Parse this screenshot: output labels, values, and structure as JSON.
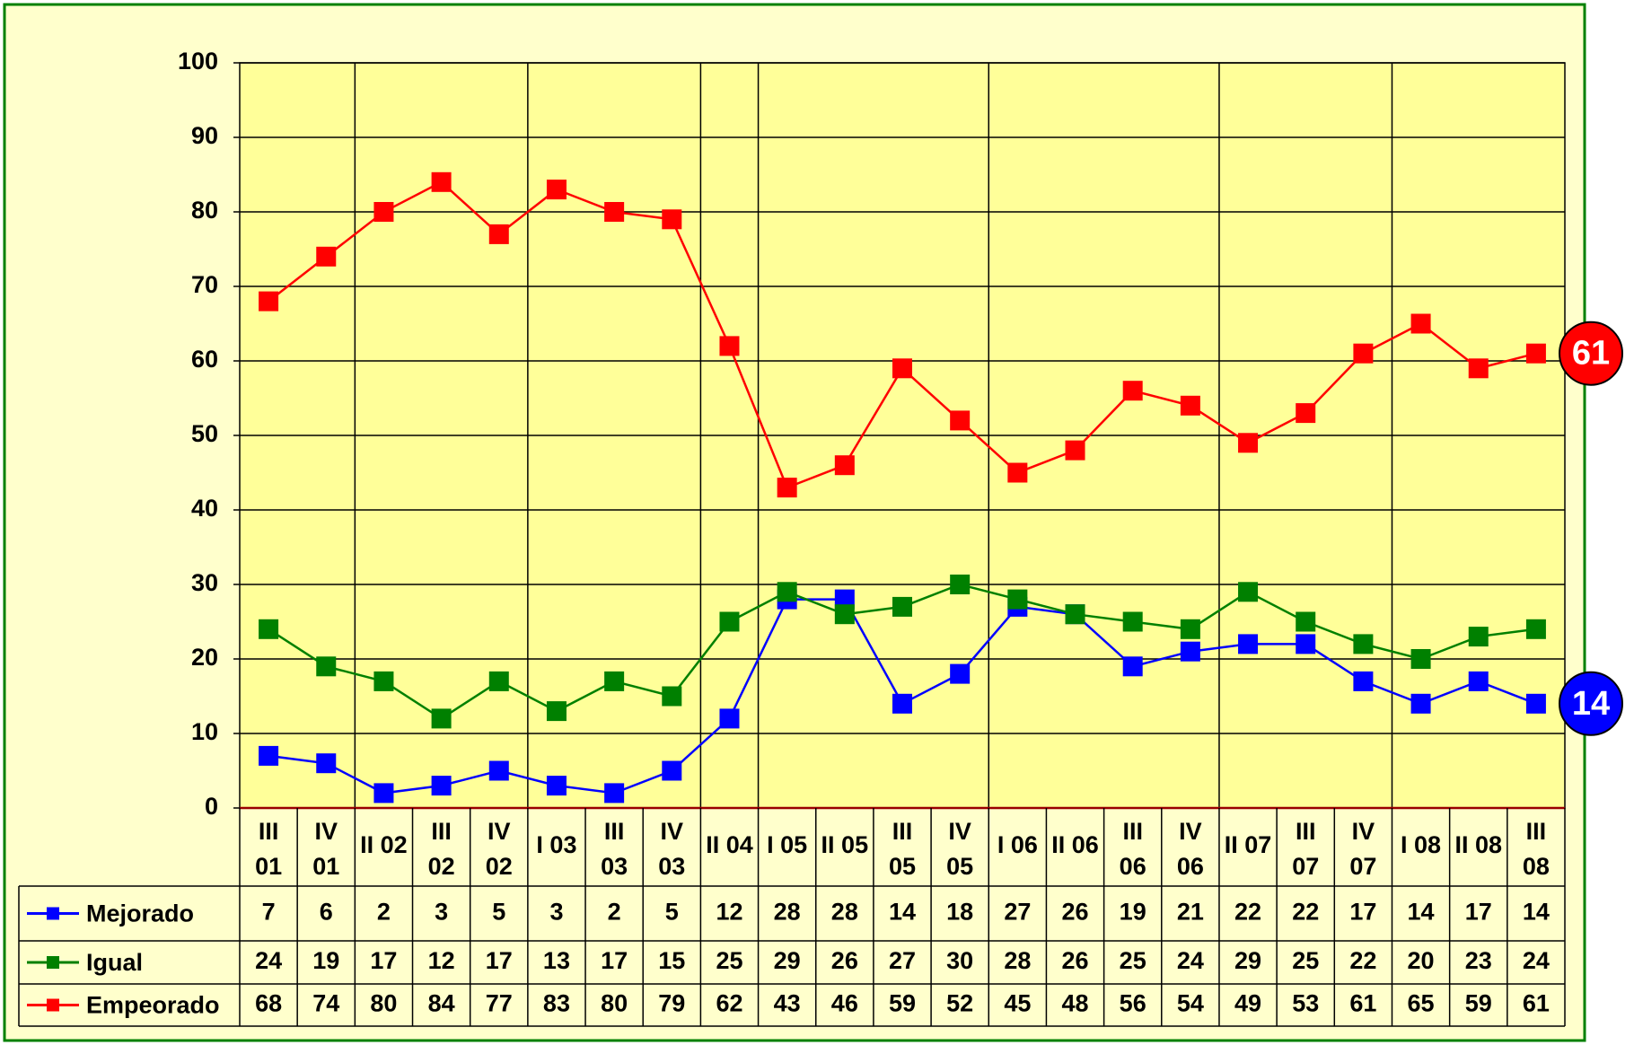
{
  "chart_data": {
    "type": "line",
    "categories": [
      "III\n01",
      "IV\n01",
      "II 02",
      "III\n02",
      "IV\n02",
      "I 03",
      "III\n03",
      "IV\n03",
      "II 04",
      "I 05",
      "II 05",
      "III\n05",
      "IV\n05",
      "I 06",
      "II 06",
      "III\n06",
      "IV\n06",
      "II 07",
      "III\n07",
      "IV\n07",
      "I 08",
      "II 08",
      "III\n08"
    ],
    "series": [
      {
        "name": "Mejorado",
        "color": "#0000ff",
        "values": [
          7,
          6,
          2,
          3,
          5,
          3,
          2,
          5,
          12,
          28,
          28,
          14,
          18,
          27,
          26,
          19,
          21,
          22,
          22,
          17,
          14,
          17,
          14
        ]
      },
      {
        "name": "Igual",
        "color": "#008000",
        "values": [
          24,
          19,
          17,
          12,
          17,
          13,
          17,
          15,
          25,
          29,
          26,
          27,
          30,
          28,
          26,
          25,
          24,
          29,
          25,
          22,
          20,
          23,
          24
        ]
      },
      {
        "name": "Empeorado",
        "color": "#ff0000",
        "values": [
          68,
          74,
          80,
          84,
          77,
          83,
          80,
          79,
          62,
          43,
          46,
          59,
          52,
          45,
          48,
          56,
          54,
          49,
          53,
          61,
          65,
          59,
          61
        ]
      }
    ],
    "ylim": [
      0,
      100
    ],
    "yticks": [
      0,
      10,
      20,
      30,
      40,
      50,
      60,
      70,
      80,
      90,
      100
    ],
    "grid": true
  }
}
